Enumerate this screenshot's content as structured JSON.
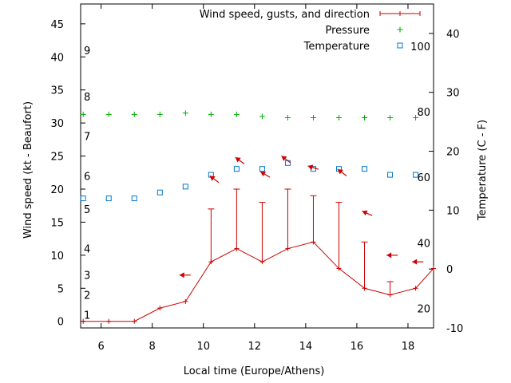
{
  "chart_data": {
    "type": "line",
    "xlabel": "Local time (Europe/Athens)",
    "ylabel_left": "Wind speed (kt - Beaufort)",
    "ylabel_right": "Temperature (C - F)",
    "xlim": [
      5.2,
      19.0
    ],
    "ylim_left": [
      -1,
      48
    ],
    "ylim_right": [
      -10,
      45
    ],
    "x_ticks": [
      6,
      8,
      10,
      12,
      14,
      16,
      18
    ],
    "y_left_ticks": [
      0,
      5,
      10,
      15,
      20,
      25,
      30,
      35,
      40,
      45
    ],
    "y_right_ticks": [
      -10,
      0,
      10,
      20,
      30,
      40
    ],
    "beaufort_labels": [
      {
        "label": "1",
        "kt": 1
      },
      {
        "label": "2",
        "kt": 4
      },
      {
        "label": "3",
        "kt": 7
      },
      {
        "label": "4",
        "kt": 11
      },
      {
        "label": "5",
        "kt": 17
      },
      {
        "label": "6",
        "kt": 22
      },
      {
        "label": "7",
        "kt": 28
      },
      {
        "label": "8",
        "kt": 34
      },
      {
        "label": "9",
        "kt": 41
      }
    ],
    "fahrenheit_labels": [
      {
        "label": "20",
        "c": -6.7
      },
      {
        "label": "40",
        "c": 4.4
      },
      {
        "label": "60",
        "c": 15.6
      },
      {
        "label": "80",
        "c": 26.7
      },
      {
        "label": "100",
        "c": 37.8
      }
    ],
    "legend": {
      "position": "top-right",
      "entries": [
        {
          "label": "Wind speed, gusts, and direction",
          "marker": "line-plus",
          "color": "#cc0000"
        },
        {
          "label": "Pressure",
          "marker": "plus",
          "color": "#00aa00"
        },
        {
          "label": "Temperature",
          "marker": "square",
          "color": "#0077cc"
        }
      ]
    },
    "series": [
      {
        "name": "Wind speed, gusts, and direction",
        "color": "#cc0000",
        "x": [
          5.3,
          6.3,
          7.3,
          8.3,
          9.3,
          10.3,
          11.3,
          12.3,
          13.3,
          14.3,
          15.3,
          16.3,
          17.3,
          18.3,
          19.0
        ],
        "speed": [
          0,
          0,
          0,
          2,
          3,
          9,
          11,
          9,
          11,
          12,
          8,
          5,
          4,
          5,
          8
        ],
        "gust": [
          null,
          null,
          null,
          null,
          null,
          17,
          20,
          18,
          20,
          19,
          18,
          12,
          6,
          null,
          null
        ]
      },
      {
        "name": "Pressure",
        "color": "#00aa00",
        "x": [
          5.3,
          6.3,
          7.3,
          8.3,
          9.3,
          10.3,
          11.3,
          12.3,
          13.3,
          14.3,
          15.3,
          16.3,
          17.3,
          18.3
        ],
        "values": [
          31.3,
          31.3,
          31.3,
          31.3,
          31.5,
          31.3,
          31.3,
          31.0,
          30.8,
          30.8,
          30.8,
          30.8,
          30.8,
          30.8
        ]
      },
      {
        "name": "Temperature",
        "color": "#0077cc",
        "x": [
          5.3,
          6.3,
          7.3,
          8.3,
          9.3,
          10.3,
          11.3,
          12.3,
          13.3,
          14.3,
          15.3,
          16.3,
          17.3,
          18.3
        ],
        "values": [
          12.0,
          12.0,
          12.0,
          13.0,
          14.0,
          16.0,
          17.0,
          17.0,
          18.0,
          17.0,
          17.0,
          17.0,
          16.0,
          16.0
        ]
      }
    ],
    "wind_arrows": [
      {
        "x": 9.5,
        "kt": 7,
        "dx": -1,
        "dy": 0
      },
      {
        "x": 10.6,
        "kt": 21,
        "dx": -0.8,
        "dy": -0.6
      },
      {
        "x": 11.6,
        "kt": 23.8,
        "dx": -0.8,
        "dy": -0.6
      },
      {
        "x": 12.6,
        "kt": 21.8,
        "dx": -0.85,
        "dy": -0.5
      },
      {
        "x": 13.4,
        "kt": 24,
        "dx": -0.8,
        "dy": -0.6
      },
      {
        "x": 14.5,
        "kt": 23,
        "dx": -0.95,
        "dy": -0.3
      },
      {
        "x": 15.6,
        "kt": 22,
        "dx": -0.8,
        "dy": -0.6
      },
      {
        "x": 16.6,
        "kt": 16,
        "dx": -0.9,
        "dy": -0.4
      },
      {
        "x": 17.6,
        "kt": 10,
        "dx": -1,
        "dy": 0
      },
      {
        "x": 18.6,
        "kt": 9,
        "dx": -1,
        "dy": 0
      }
    ]
  }
}
